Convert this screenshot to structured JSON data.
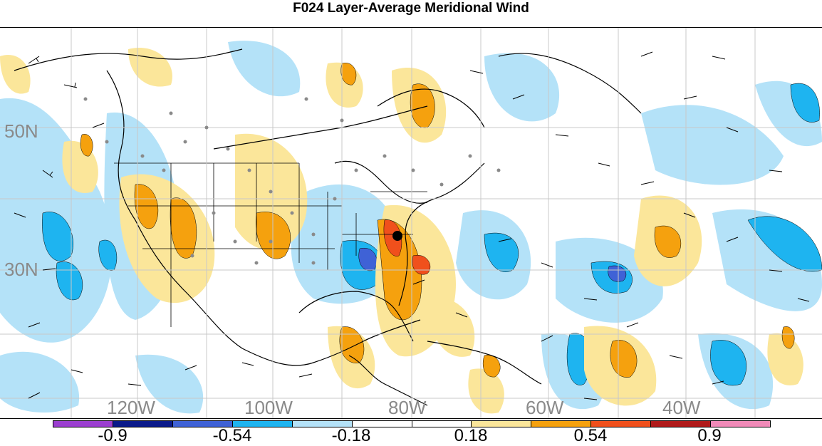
{
  "title": "F024 Layer-Average Meridional Wind",
  "lat_labels": [
    "50N",
    "30N"
  ],
  "lon_labels": [
    "120W",
    "100W",
    "80W",
    "60W",
    "40W"
  ],
  "colorbar": {
    "colors": [
      "#9b3fd0",
      "#0a1a8a",
      "#3f62d6",
      "#1eb4f0",
      "#b4e2f8",
      "#ffffff",
      "#ffffff",
      "#fbe69a",
      "#f5a10e",
      "#f0501c",
      "#b01a1a",
      "#f08ab8"
    ],
    "tick_labels": [
      "-0.9",
      "-0.54",
      "-0.18",
      "0.18",
      "0.54",
      "0.9"
    ]
  },
  "highlight_point": "black-dot"
}
